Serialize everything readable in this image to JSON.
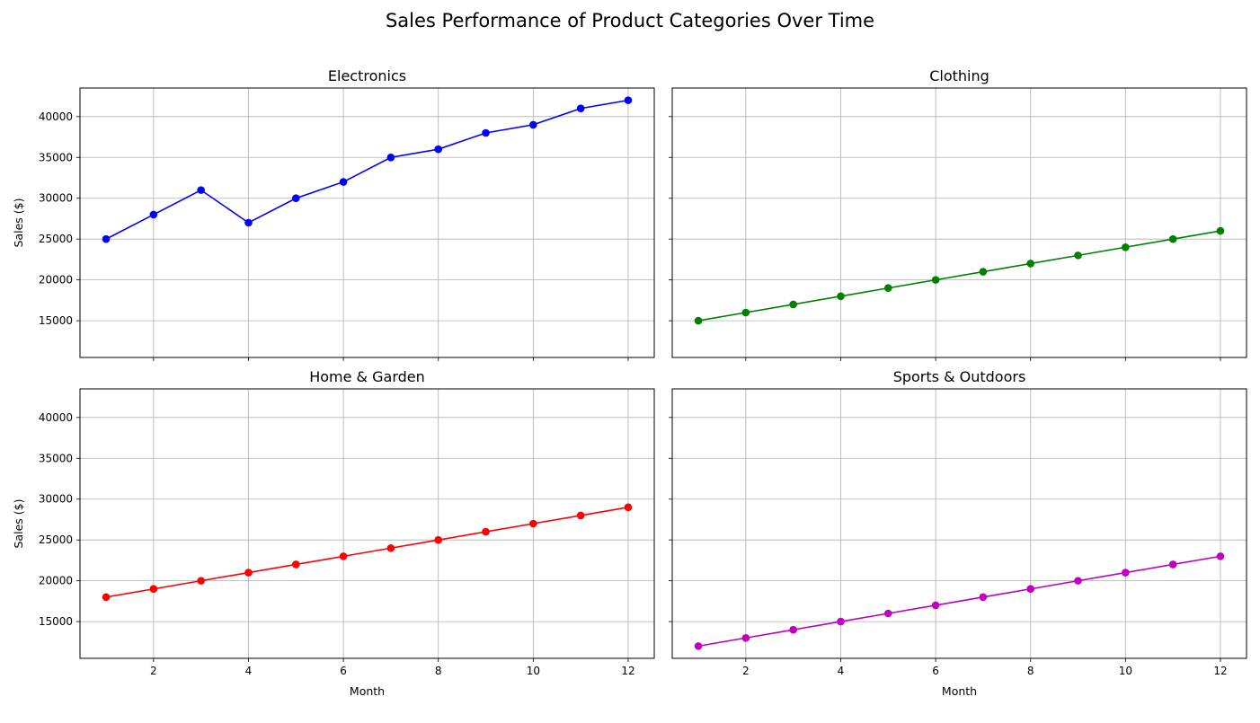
{
  "title": "Sales Performance of Product Categories Over Time",
  "chart_data": {
    "type": "line",
    "title": "Sales Performance of Product Categories Over Time",
    "shared_x": [
      1,
      2,
      3,
      4,
      5,
      6,
      7,
      8,
      9,
      10,
      11,
      12
    ],
    "xlabel": "Month",
    "ylabel": "Sales ($)",
    "xlim": [
      0.45,
      12.55
    ],
    "ylim": [
      10500,
      43500
    ],
    "xticks": [
      2,
      4,
      6,
      8,
      10,
      12
    ],
    "yticks": [
      15000,
      20000,
      25000,
      30000,
      35000,
      40000
    ],
    "grid": true,
    "panels": [
      {
        "title": "Electronics",
        "color": "#0000ff",
        "values": [
          25000,
          28000,
          31000,
          27000,
          30000,
          32000,
          35000,
          36000,
          38000,
          39000,
          41000,
          42000
        ]
      },
      {
        "title": "Clothing",
        "color": "#008000",
        "values": [
          15000,
          16000,
          17000,
          18000,
          19000,
          20000,
          21000,
          22000,
          23000,
          24000,
          25000,
          26000
        ]
      },
      {
        "title": "Home & Garden",
        "color": "#ff0000",
        "values": [
          18000,
          19000,
          20000,
          21000,
          22000,
          23000,
          24000,
          25000,
          26000,
          27000,
          28000,
          29000
        ]
      },
      {
        "title": "Sports & Outdoors",
        "color": "#bf00bf",
        "values": [
          12000,
          13000,
          14000,
          15000,
          16000,
          17000,
          18000,
          19000,
          20000,
          21000,
          22000,
          23000
        ]
      }
    ]
  }
}
